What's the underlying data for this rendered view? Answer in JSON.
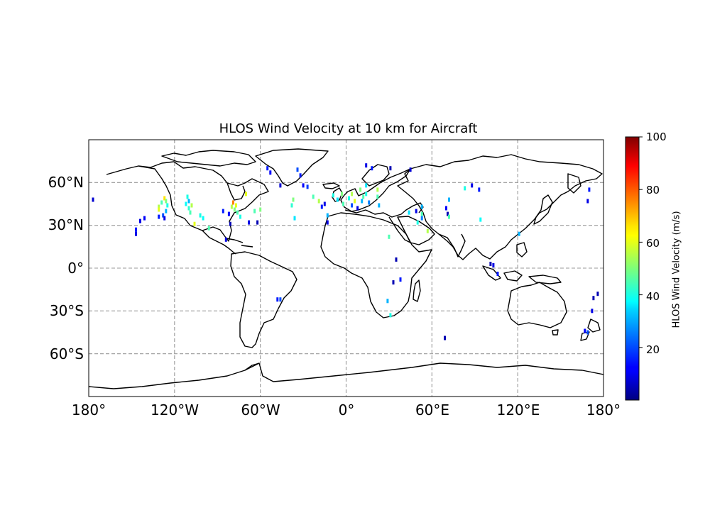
{
  "map": {
    "title": "HLOS Wind Velocity at 10 km for Aircraft",
    "projection": "PlateCarree",
    "extent": {
      "lon": [
        -180,
        180
      ],
      "lat": [
        -90,
        90
      ]
    },
    "lon_ticks": [
      {
        "value": -180,
        "label": "180°"
      },
      {
        "value": -120,
        "label": "120°W"
      },
      {
        "value": -60,
        "label": "60°W"
      },
      {
        "value": 0,
        "label": "0°"
      },
      {
        "value": 60,
        "label": "60°E"
      },
      {
        "value": 120,
        "label": "120°E"
      },
      {
        "value": 180,
        "label": "180°"
      }
    ],
    "lat_ticks": [
      {
        "value": 60,
        "label": "60°N"
      },
      {
        "value": 30,
        "label": "30°N"
      },
      {
        "value": 0,
        "label": "0°"
      },
      {
        "value": -30,
        "label": "30°S"
      },
      {
        "value": -60,
        "label": "60°S"
      }
    ],
    "gridlines": true,
    "gridline_style": "dashed",
    "coastline_color": "#000000"
  },
  "colorbar": {
    "label": "HLOS Wind Velocity (m/s)",
    "cmap": "jet",
    "range": [
      0,
      100
    ],
    "ticks": [
      {
        "value": 20,
        "label": "20"
      },
      {
        "value": 40,
        "label": "40"
      },
      {
        "value": 60,
        "label": "60"
      },
      {
        "value": 80,
        "label": "80"
      },
      {
        "value": 100,
        "label": "100"
      }
    ]
  },
  "observations": [
    [
      -177,
      48,
      8
    ],
    [
      -147,
      27,
      15
    ],
    [
      -147,
      24,
      10
    ],
    [
      -144,
      33,
      10
    ],
    [
      -141,
      35,
      12
    ],
    [
      -131,
      43,
      55
    ],
    [
      -129,
      46,
      45
    ],
    [
      -127,
      49,
      65
    ],
    [
      -126,
      47,
      50
    ],
    [
      -125,
      44,
      40
    ],
    [
      -126,
      40,
      30
    ],
    [
      -128,
      37,
      20
    ],
    [
      -131,
      36,
      15
    ],
    [
      -127,
      35,
      10
    ],
    [
      -131,
      41,
      60
    ],
    [
      -111,
      50,
      40
    ],
    [
      -112,
      45,
      38
    ],
    [
      -110,
      42,
      42
    ],
    [
      -109,
      39,
      45
    ],
    [
      -108,
      44,
      55
    ],
    [
      -110,
      47,
      30
    ],
    [
      -102,
      37,
      40
    ],
    [
      -100,
      35,
      38
    ],
    [
      -106,
      31,
      60
    ],
    [
      -96,
      28,
      45
    ],
    [
      -86,
      40,
      15
    ],
    [
      -82,
      38,
      12
    ],
    [
      -80,
      43,
      55
    ],
    [
      -79,
      46,
      75
    ],
    [
      -77,
      44,
      60
    ],
    [
      -78,
      41,
      50
    ],
    [
      -76,
      39,
      45
    ],
    [
      -74,
      36,
      40
    ],
    [
      -81,
      31,
      5
    ],
    [
      -84,
      20,
      10
    ],
    [
      -70,
      52,
      60
    ],
    [
      -64,
      40,
      45
    ],
    [
      -60,
      41,
      50
    ],
    [
      -68,
      32,
      10
    ],
    [
      -62,
      32,
      5
    ],
    [
      -55,
      70,
      15
    ],
    [
      -53,
      67,
      12
    ],
    [
      -46,
      58,
      8
    ],
    [
      -34,
      69,
      20
    ],
    [
      -32,
      65,
      15
    ],
    [
      -30,
      58,
      12
    ],
    [
      -27,
      57,
      18
    ],
    [
      -38,
      44,
      42
    ],
    [
      -37,
      48,
      50
    ],
    [
      -36,
      35,
      35
    ],
    [
      -23,
      50,
      45
    ],
    [
      -19,
      47,
      55
    ],
    [
      -17,
      43,
      15
    ],
    [
      -15,
      45,
      10
    ],
    [
      -13,
      37,
      30
    ],
    [
      -13,
      32,
      10
    ],
    [
      -9,
      51,
      40
    ],
    [
      -6,
      48,
      35
    ],
    [
      -3,
      52,
      50
    ],
    [
      -2,
      45,
      45
    ],
    [
      2,
      49,
      40
    ],
    [
      4,
      44,
      20
    ],
    [
      4,
      52,
      55
    ],
    [
      6,
      47,
      60
    ],
    [
      8,
      42,
      10
    ],
    [
      10,
      55,
      50
    ],
    [
      11,
      47,
      30
    ],
    [
      12,
      50,
      45
    ],
    [
      14,
      58,
      35
    ],
    [
      14,
      52,
      40
    ],
    [
      16,
      46,
      25
    ],
    [
      22,
      55,
      55
    ],
    [
      22,
      50,
      45
    ],
    [
      23,
      44,
      30
    ],
    [
      14,
      72,
      10
    ],
    [
      18,
      70,
      15
    ],
    [
      31,
      70,
      5
    ],
    [
      45,
      69,
      8
    ],
    [
      49,
      40,
      10
    ],
    [
      53,
      43,
      30
    ],
    [
      53,
      38,
      45
    ],
    [
      50,
      32,
      40
    ],
    [
      57,
      26,
      55
    ],
    [
      53,
      35,
      25
    ],
    [
      70,
      42,
      12
    ],
    [
      71,
      38,
      5
    ],
    [
      72,
      36,
      45
    ],
    [
      72,
      48,
      30
    ],
    [
      83,
      56,
      40
    ],
    [
      88,
      58,
      10
    ],
    [
      93,
      55,
      15
    ],
    [
      94,
      34,
      38
    ],
    [
      101,
      3,
      5
    ],
    [
      103,
      2,
      10
    ],
    [
      106,
      -4,
      15
    ],
    [
      121,
      24,
      30
    ],
    [
      33,
      -10,
      5
    ],
    [
      35,
      6,
      5
    ],
    [
      38,
      -8,
      15
    ],
    [
      29,
      -23,
      30
    ],
    [
      31,
      -33,
      40
    ],
    [
      -48,
      -22,
      15
    ],
    [
      -46,
      -22,
      20
    ],
    [
      69,
      -49,
      5
    ],
    [
      170,
      55,
      15
    ],
    [
      169,
      47,
      10
    ],
    [
      173,
      -21,
      5
    ],
    [
      172,
      -30,
      10
    ],
    [
      167,
      -44,
      12
    ],
    [
      169,
      -45,
      20
    ],
    [
      176,
      -18,
      5
    ],
    [
      44,
      39,
      35
    ],
    [
      30,
      22,
      45
    ]
  ]
}
